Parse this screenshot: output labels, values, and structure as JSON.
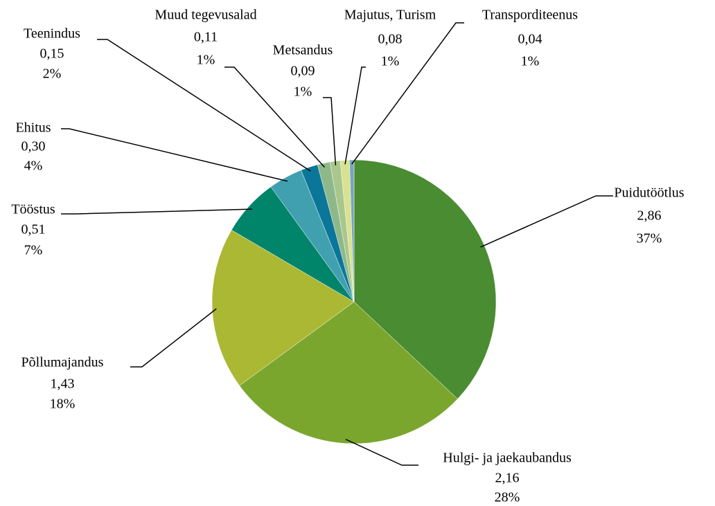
{
  "chart_data": {
    "type": "pie",
    "categories": [
      "Puidutöötlus",
      "Hulgi- ja jaekaubandus",
      "Põllumajandus",
      "Tööstus",
      "Ehitus",
      "Teenindus",
      "Muud tegevusalad",
      "Metsandus",
      "Majutus, Turism",
      "Transporditeenus"
    ],
    "values": [
      2.86,
      2.16,
      1.43,
      0.51,
      0.3,
      0.15,
      0.11,
      0.09,
      0.08,
      0.04
    ],
    "value_labels": [
      "2,86",
      "2,16",
      "1,43",
      "0,51",
      "0,30",
      "0,15",
      "0,11",
      "0,09",
      "0,08",
      "0,04"
    ],
    "percents": [
      37,
      28,
      18,
      7,
      4,
      2,
      1,
      1,
      1,
      1
    ],
    "percent_labels": [
      "37%",
      "28%",
      "18%",
      "7%",
      "4%",
      "2%",
      "1%",
      "1%",
      "1%",
      "1%"
    ],
    "colors": [
      "#4a8c32",
      "#7ba62e",
      "#abb834",
      "#00846a",
      "#40a0b0",
      "#0a7799",
      "#8fb88a",
      "#a9c78c",
      "#d8e290",
      "#7aa6bc"
    ]
  }
}
